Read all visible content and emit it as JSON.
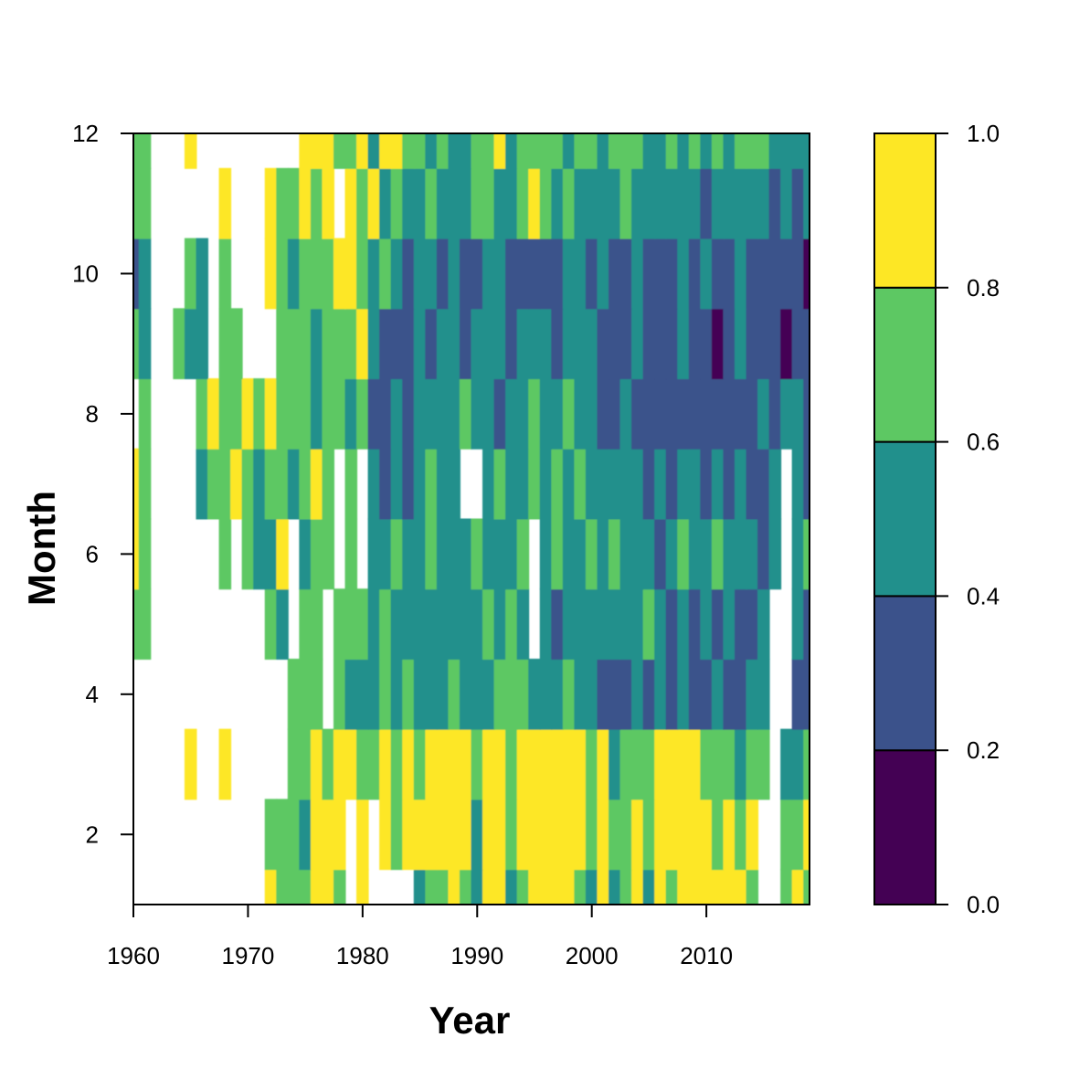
{
  "chart_data": {
    "type": "heatmap",
    "subtype": "filled-contour",
    "title": "",
    "xlabel": "Year",
    "ylabel": "Month",
    "xlim": [
      1960,
      2019
    ],
    "ylim": [
      1,
      12
    ],
    "x_ticks": [
      "1960",
      "1970",
      "1980",
      "1990",
      "2000",
      "2010"
    ],
    "y_ticks": [
      "2",
      "4",
      "6",
      "8",
      "10",
      "12"
    ],
    "grid": false,
    "legend": {
      "type": "colorbar",
      "placement": "right",
      "ticks": [
        "0.0",
        "0.2",
        "0.4",
        "0.6",
        "0.8",
        "1.0"
      ],
      "levels": [
        {
          "from": 0.0,
          "to": 0.2,
          "color": "#440154"
        },
        {
          "from": 0.2,
          "to": 0.4,
          "color": "#3b528b"
        },
        {
          "from": 0.4,
          "to": 0.6,
          "color": "#21908c"
        },
        {
          "from": 0.6,
          "to": 0.8,
          "color": "#5dc863"
        },
        {
          "from": 0.8,
          "to": 1.0,
          "color": "#fde725"
        }
      ]
    },
    "colorbar_level_heights": [
      0.2,
      0.2,
      0.2,
      0.2,
      0.2
    ],
    "missing_color": "#ffffff",
    "years": [
      1960,
      1961,
      1962,
      1963,
      1964,
      1965,
      1966,
      1967,
      1968,
      1969,
      1970,
      1971,
      1972,
      1973,
      1974,
      1975,
      1976,
      1977,
      1978,
      1979,
      1980,
      1981,
      1982,
      1983,
      1984,
      1985,
      1986,
      1987,
      1988,
      1989,
      1990,
      1991,
      1992,
      1993,
      1994,
      1995,
      1996,
      1997,
      1998,
      1999,
      2000,
      2001,
      2002,
      2003,
      2004,
      2005,
      2006,
      2007,
      2008,
      2009,
      2010,
      2011,
      2012,
      2013,
      2014,
      2015,
      2016,
      2017,
      2018,
      2019
    ],
    "months": [
      1,
      2,
      3,
      4,
      5,
      6,
      7,
      8,
      9,
      10,
      11,
      12
    ],
    "values": [
      [
        null,
        null,
        null,
        null,
        null,
        null,
        null,
        null,
        null,
        null,
        null,
        null,
        0.9,
        0.7,
        0.7,
        0.7,
        0.9,
        0.9,
        0.7,
        null,
        0.9,
        null,
        null,
        null,
        null,
        0.5,
        0.7,
        0.7,
        0.9,
        0.7,
        0.5,
        0.9,
        0.9,
        0.5,
        0.7,
        0.9,
        0.9,
        0.9,
        0.9,
        0.7,
        0.5,
        0.9,
        0.5,
        0.7,
        0.9,
        0.5,
        0.9,
        0.7,
        0.9,
        0.9,
        0.9,
        0.9,
        0.9,
        0.9,
        0.7,
        null,
        null,
        0.7,
        0.9,
        0.7
      ],
      [
        null,
        null,
        null,
        null,
        null,
        null,
        null,
        null,
        null,
        null,
        null,
        null,
        0.7,
        0.7,
        0.7,
        0.5,
        0.9,
        0.9,
        0.9,
        null,
        0.9,
        null,
        0.9,
        0.7,
        0.9,
        0.9,
        0.9,
        0.9,
        0.9,
        0.9,
        0.5,
        0.9,
        0.9,
        0.7,
        0.9,
        0.9,
        0.9,
        0.9,
        0.9,
        0.9,
        0.7,
        0.9,
        0.7,
        0.7,
        0.9,
        0.7,
        0.9,
        0.9,
        0.9,
        0.9,
        0.9,
        0.7,
        0.9,
        0.7,
        0.9,
        null,
        null,
        0.7,
        0.7,
        0.9
      ],
      [
        null,
        null,
        null,
        null,
        null,
        0.9,
        null,
        null,
        0.9,
        null,
        null,
        null,
        null,
        null,
        0.7,
        0.7,
        0.9,
        0.7,
        0.9,
        0.9,
        0.7,
        0.7,
        0.9,
        0.7,
        0.9,
        0.7,
        0.9,
        0.9,
        0.9,
        0.9,
        0.7,
        0.9,
        0.9,
        0.7,
        0.9,
        0.9,
        0.9,
        0.9,
        0.9,
        0.9,
        0.7,
        0.9,
        0.5,
        0.7,
        0.7,
        0.7,
        0.9,
        0.9,
        0.9,
        0.9,
        0.7,
        0.7,
        0.7,
        0.5,
        0.7,
        0.7,
        null,
        0.5,
        0.5,
        0.7
      ],
      [
        null,
        null,
        null,
        null,
        null,
        null,
        null,
        null,
        null,
        null,
        null,
        null,
        null,
        null,
        0.7,
        0.7,
        0.7,
        null,
        0.7,
        0.5,
        0.5,
        0.5,
        0.7,
        0.5,
        0.7,
        0.5,
        0.5,
        0.5,
        0.7,
        0.5,
        0.5,
        0.5,
        0.7,
        0.7,
        0.7,
        0.5,
        0.5,
        0.5,
        0.7,
        0.5,
        0.5,
        0.3,
        0.3,
        0.3,
        0.5,
        0.3,
        0.5,
        0.3,
        0.5,
        0.3,
        0.3,
        0.5,
        0.3,
        0.3,
        0.5,
        0.5,
        null,
        null,
        0.3,
        0.3
      ],
      [
        0.7,
        0.7,
        null,
        null,
        null,
        null,
        null,
        null,
        null,
        null,
        null,
        null,
        0.7,
        0.5,
        null,
        0.7,
        0.7,
        null,
        0.7,
        0.7,
        0.7,
        0.5,
        0.7,
        0.5,
        0.5,
        0.5,
        0.5,
        0.5,
        0.5,
        0.5,
        0.5,
        0.7,
        0.5,
        0.7,
        0.5,
        null,
        0.5,
        0.3,
        0.5,
        0.5,
        0.5,
        0.5,
        0.5,
        0.5,
        0.5,
        0.7,
        0.5,
        0.3,
        0.5,
        0.3,
        0.5,
        0.3,
        0.5,
        0.3,
        0.3,
        0.5,
        null,
        null,
        0.5,
        0.3
      ],
      [
        0.9,
        0.7,
        null,
        null,
        null,
        null,
        null,
        null,
        0.7,
        null,
        0.7,
        0.5,
        0.5,
        0.9,
        null,
        0.5,
        0.7,
        0.7,
        null,
        0.7,
        null,
        0.5,
        0.5,
        0.7,
        0.5,
        0.5,
        0.7,
        0.5,
        0.5,
        0.5,
        0.7,
        0.5,
        0.5,
        0.5,
        0.7,
        null,
        0.5,
        0.7,
        0.5,
        0.5,
        0.7,
        0.5,
        0.7,
        0.5,
        0.5,
        0.5,
        0.3,
        0.5,
        0.7,
        0.5,
        0.5,
        0.7,
        0.5,
        0.5,
        0.5,
        0.3,
        0.5,
        null,
        0.5,
        0.7
      ],
      [
        0.9,
        0.7,
        null,
        null,
        null,
        null,
        0.5,
        0.7,
        0.7,
        0.9,
        0.7,
        0.5,
        0.7,
        0.7,
        0.5,
        0.7,
        0.9,
        0.7,
        null,
        0.7,
        null,
        0.5,
        0.3,
        0.5,
        0.3,
        0.5,
        0.7,
        0.5,
        0.5,
        null,
        null,
        0.5,
        0.7,
        0.5,
        0.5,
        0.7,
        0.5,
        0.7,
        0.5,
        0.7,
        0.5,
        0.5,
        0.5,
        0.5,
        0.5,
        0.3,
        0.5,
        0.3,
        0.5,
        0.5,
        0.3,
        0.5,
        0.3,
        0.5,
        0.3,
        0.3,
        0.5,
        null,
        0.5,
        0.3
      ],
      [
        null,
        0.7,
        null,
        null,
        null,
        null,
        0.7,
        0.9,
        0.7,
        0.7,
        0.9,
        0.7,
        0.9,
        0.7,
        0.7,
        0.7,
        0.5,
        0.7,
        0.7,
        0.5,
        0.7,
        0.3,
        0.3,
        0.5,
        0.3,
        0.5,
        0.5,
        0.5,
        0.5,
        0.7,
        0.5,
        0.5,
        0.3,
        0.5,
        0.5,
        0.7,
        0.5,
        0.5,
        0.7,
        0.5,
        0.5,
        0.3,
        0.3,
        0.5,
        0.3,
        0.3,
        0.3,
        0.3,
        0.3,
        0.3,
        0.3,
        0.3,
        0.3,
        0.3,
        0.3,
        0.5,
        0.3,
        0.5,
        0.5,
        0.3
      ],
      [
        0.7,
        0.5,
        null,
        null,
        0.7,
        0.5,
        0.5,
        null,
        0.7,
        0.7,
        null,
        null,
        null,
        0.7,
        0.7,
        0.7,
        0.5,
        0.7,
        0.7,
        0.7,
        0.9,
        0.5,
        0.3,
        0.3,
        0.3,
        0.5,
        0.3,
        0.5,
        0.5,
        0.3,
        0.5,
        0.5,
        0.5,
        0.3,
        0.5,
        0.5,
        0.5,
        0.3,
        0.5,
        0.5,
        0.5,
        0.3,
        0.3,
        0.3,
        0.5,
        0.3,
        0.3,
        0.3,
        0.5,
        0.3,
        0.3,
        0.1,
        0.3,
        0.5,
        0.3,
        0.3,
        0.3,
        0.1,
        0.3,
        0.3
      ],
      [
        0.3,
        0.5,
        null,
        null,
        null,
        0.7,
        0.5,
        null,
        0.7,
        null,
        null,
        null,
        0.9,
        0.7,
        0.5,
        0.7,
        0.7,
        0.7,
        0.9,
        0.9,
        0.7,
        0.5,
        0.7,
        0.5,
        0.3,
        0.5,
        0.5,
        0.3,
        0.5,
        0.3,
        0.3,
        0.5,
        0.5,
        0.3,
        0.3,
        0.3,
        0.3,
        0.3,
        0.5,
        0.5,
        0.3,
        0.5,
        0.3,
        0.3,
        0.5,
        0.3,
        0.3,
        0.3,
        0.5,
        0.3,
        0.5,
        0.3,
        0.3,
        0.5,
        0.3,
        0.3,
        0.3,
        0.3,
        0.3,
        0.1
      ],
      [
        0.7,
        0.7,
        null,
        null,
        null,
        null,
        null,
        null,
        0.9,
        null,
        null,
        null,
        0.9,
        0.7,
        0.7,
        0.9,
        0.7,
        0.9,
        null,
        0.9,
        0.7,
        0.9,
        0.5,
        0.7,
        0.5,
        0.5,
        0.7,
        0.5,
        0.5,
        0.5,
        0.7,
        0.7,
        0.5,
        0.5,
        0.7,
        0.9,
        0.7,
        0.5,
        0.7,
        0.5,
        0.5,
        0.5,
        0.5,
        0.7,
        0.5,
        0.5,
        0.5,
        0.5,
        0.5,
        0.5,
        0.3,
        0.5,
        0.5,
        0.5,
        0.5,
        0.5,
        0.3,
        0.5,
        0.3,
        0.5
      ],
      [
        0.7,
        0.7,
        null,
        null,
        null,
        0.9,
        null,
        null,
        null,
        null,
        null,
        null,
        null,
        null,
        null,
        0.9,
        0.9,
        0.9,
        0.7,
        0.7,
        0.9,
        0.5,
        0.9,
        0.9,
        0.7,
        0.7,
        0.5,
        0.7,
        0.5,
        0.5,
        0.7,
        0.7,
        0.9,
        0.5,
        0.7,
        0.7,
        0.7,
        0.7,
        0.5,
        0.7,
        0.7,
        0.5,
        0.7,
        0.7,
        0.7,
        0.5,
        0.5,
        0.7,
        0.5,
        0.7,
        0.5,
        0.7,
        0.5,
        0.7,
        0.7,
        0.7,
        0.5,
        0.5,
        0.5,
        0.5
      ]
    ]
  }
}
